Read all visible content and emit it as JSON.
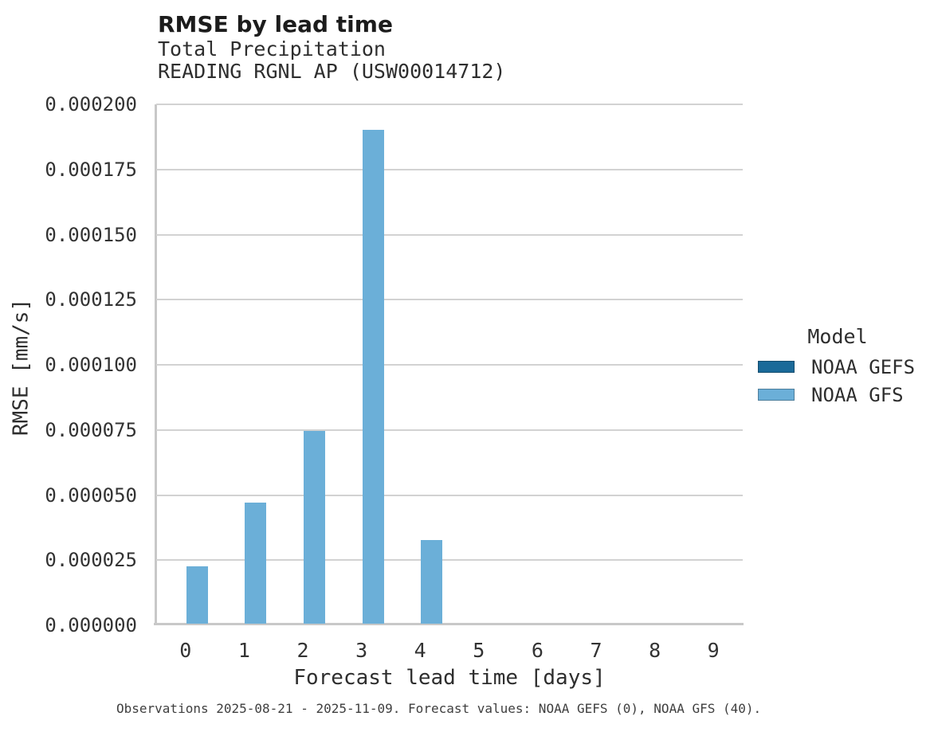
{
  "chart_data": {
    "type": "bar",
    "title": "RMSE by lead time",
    "subtitle_lines": [
      "Total Precipitation",
      "READING RGNL AP (USW00014712)"
    ],
    "xlabel": "Forecast lead time [days]",
    "ylabel": "RMSE [mm/s]",
    "categories": [
      "0",
      "1",
      "2",
      "3",
      "4",
      "5",
      "6",
      "7",
      "8",
      "9"
    ],
    "series": [
      {
        "name": "NOAA GEFS",
        "color": "#1b6a99",
        "values": [
          null,
          null,
          null,
          null,
          null,
          null,
          null,
          null,
          null,
          null
        ]
      },
      {
        "name": "NOAA GFS",
        "color": "#6bafd8",
        "values": [
          2.26e-05,
          4.71e-05,
          7.46e-05,
          0.0001903,
          3.27e-05,
          0,
          0,
          0,
          0,
          0
        ]
      }
    ],
    "ylim": [
      0,
      0.0002
    ],
    "ytick_labels": [
      "0.000000",
      "0.000025",
      "0.000050",
      "0.000075",
      "0.000100",
      "0.000125",
      "0.000150",
      "0.000175",
      "0.000200"
    ],
    "grid": "horizontal",
    "legend_title": "Model",
    "legend_position": "right",
    "caption": "Observations 2025-08-21 - 2025-11-09. Forecast values: NOAA GEFS (0), NOAA GFS (40)."
  },
  "colors": {
    "bar_light_blue": "#6bafd8",
    "bar_dark_blue": "#1b6a99",
    "gridline": "#d2d2d2",
    "axis_line": "#c8c8c8",
    "text": "#2e2e2e",
    "caption_text": "#3f3f3f"
  }
}
